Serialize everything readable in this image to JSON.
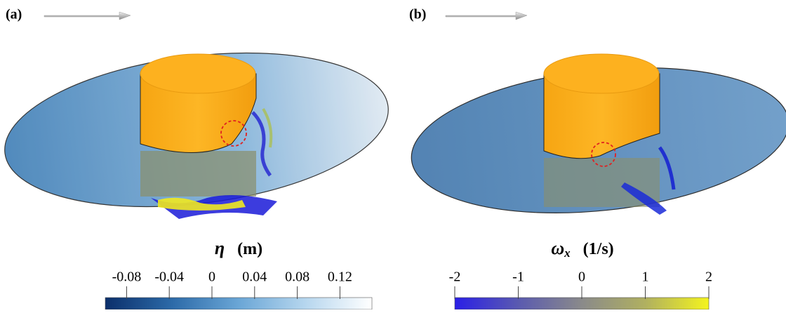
{
  "chart_data": [
    {
      "type": "colorbar",
      "panel": "(a)",
      "symbol": "η",
      "unit": "(m)",
      "xlim": [
        -0.1,
        0.15
      ],
      "xticks": [
        -0.08,
        -0.04,
        0,
        0.04,
        0.08,
        0.12
      ],
      "colormap": [
        "#0b2f6b",
        "#2c6aa8",
        "#6aa6d6",
        "#b6d6ee",
        "#ffffff"
      ]
    },
    {
      "type": "colorbar",
      "panel": "(b)",
      "symbol": "ω",
      "symbol_subscript": "x",
      "unit": "(1/s)",
      "xlim": [
        -2,
        2
      ],
      "xticks": [
        -2,
        -1,
        0,
        1,
        2
      ],
      "colormap": [
        "#2a1fe6",
        "#5a5ab0",
        "#8a8a8a",
        "#b0b060",
        "#f4f41e"
      ]
    }
  ]
}
